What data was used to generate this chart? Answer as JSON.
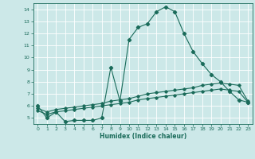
{
  "title": "",
  "xlabel": "Humidex (Indice chaleur)",
  "ylabel": "",
  "background_color": "#cce8e8",
  "grid_color": "#ffffff",
  "line_color": "#1a6b5a",
  "xlim": [
    -0.5,
    23.5
  ],
  "ylim": [
    4.5,
    14.5
  ],
  "yticks": [
    5,
    6,
    7,
    8,
    9,
    10,
    11,
    12,
    13,
    14
  ],
  "xticks": [
    0,
    1,
    2,
    3,
    4,
    5,
    6,
    7,
    8,
    9,
    10,
    11,
    12,
    13,
    14,
    15,
    16,
    17,
    18,
    19,
    20,
    21,
    22,
    23
  ],
  "curve1_x": [
    0,
    1,
    2,
    3,
    4,
    5,
    6,
    7,
    8,
    9,
    10,
    11,
    12,
    13,
    14,
    15,
    16,
    17,
    18,
    19,
    20,
    21,
    22,
    23
  ],
  "curve1_y": [
    6.0,
    5.0,
    5.5,
    4.7,
    4.8,
    4.8,
    4.8,
    5.0,
    9.2,
    6.4,
    11.5,
    12.5,
    12.8,
    13.8,
    14.2,
    13.8,
    12.0,
    10.5,
    9.5,
    8.6,
    8.0,
    7.2,
    6.5,
    6.3
  ],
  "curve2_x": [
    0,
    1,
    2,
    3,
    4,
    5,
    6,
    7,
    8,
    9,
    10,
    11,
    12,
    13,
    14,
    15,
    16,
    17,
    18,
    19,
    20,
    21,
    22,
    23
  ],
  "curve2_y": [
    5.8,
    5.5,
    5.7,
    5.8,
    5.9,
    6.0,
    6.1,
    6.2,
    6.4,
    6.5,
    6.6,
    6.8,
    7.0,
    7.1,
    7.2,
    7.3,
    7.4,
    7.5,
    7.7,
    7.8,
    7.9,
    7.8,
    7.7,
    6.4
  ],
  "curve3_x": [
    0,
    1,
    2,
    3,
    4,
    5,
    6,
    7,
    8,
    9,
    10,
    11,
    12,
    13,
    14,
    15,
    16,
    17,
    18,
    19,
    20,
    21,
    22,
    23
  ],
  "curve3_y": [
    5.6,
    5.3,
    5.5,
    5.6,
    5.7,
    5.8,
    5.9,
    6.0,
    6.1,
    6.2,
    6.3,
    6.5,
    6.6,
    6.7,
    6.8,
    6.9,
    7.0,
    7.1,
    7.2,
    7.3,
    7.4,
    7.3,
    7.2,
    6.3
  ],
  "xlabel_fontsize": 5.5,
  "tick_fontsize": 4.5,
  "linewidth": 0.8,
  "markersize1": 2.2,
  "markersize2": 1.8
}
